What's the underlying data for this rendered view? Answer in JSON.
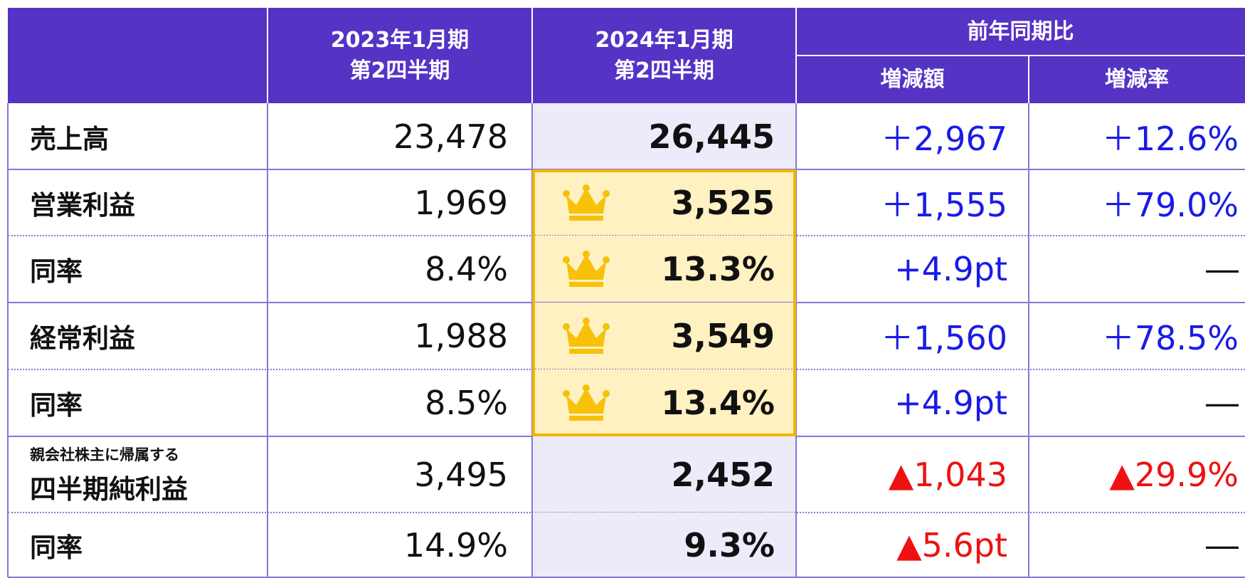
{
  "table": {
    "header": {
      "columns": [
        [
          "2023年1月期",
          "第2四半期"
        ],
        [
          "2024年1月期",
          "第2四半期"
        ]
      ],
      "group": "前年同期比",
      "subcolumns": [
        "増減額",
        "増減率"
      ]
    },
    "rows": [
      {
        "label": "売上高",
        "cells": [
          "23,478",
          "26,445",
          "＋2,967",
          "＋12.6%"
        ],
        "highlight": false,
        "colors": [
          "#1a1ae8",
          "#1a1ae8"
        ]
      },
      {
        "label": "営業利益",
        "cells": [
          "1,969",
          "3,525",
          "＋1,555",
          "＋79.0%"
        ],
        "highlight": true,
        "colors": [
          "#1a1ae8",
          "#1a1ae8"
        ]
      },
      {
        "label": "同率",
        "cells": [
          "8.4%",
          "13.3%",
          "+4.9pt",
          "―"
        ],
        "highlight": true,
        "colors": [
          "#1a1ae8",
          "#111111"
        ]
      },
      {
        "label": "経常利益",
        "cells": [
          "1,988",
          "3,549",
          "＋1,560",
          "＋78.5%"
        ],
        "highlight": true,
        "colors": [
          "#1a1ae8",
          "#1a1ae8"
        ]
      },
      {
        "label": "同率",
        "cells": [
          "8.5%",
          "13.4%",
          "+4.9pt",
          "―"
        ],
        "highlight": true,
        "colors": [
          "#1a1ae8",
          "#111111"
        ]
      },
      {
        "note": "親会社株主に帰属する",
        "label": "四半期純利益",
        "cells": [
          "3,495",
          "2,452",
          "▲1,043",
          "▲29.9%"
        ],
        "highlight": false,
        "colors": [
          "#ee1111",
          "#ee1111"
        ]
      },
      {
        "label": "同率",
        "cells": [
          "14.9%",
          "9.3%",
          "▲5.6pt",
          "―"
        ],
        "highlight": false,
        "colors": [
          "#ee1111",
          "#111111"
        ]
      }
    ]
  }
}
